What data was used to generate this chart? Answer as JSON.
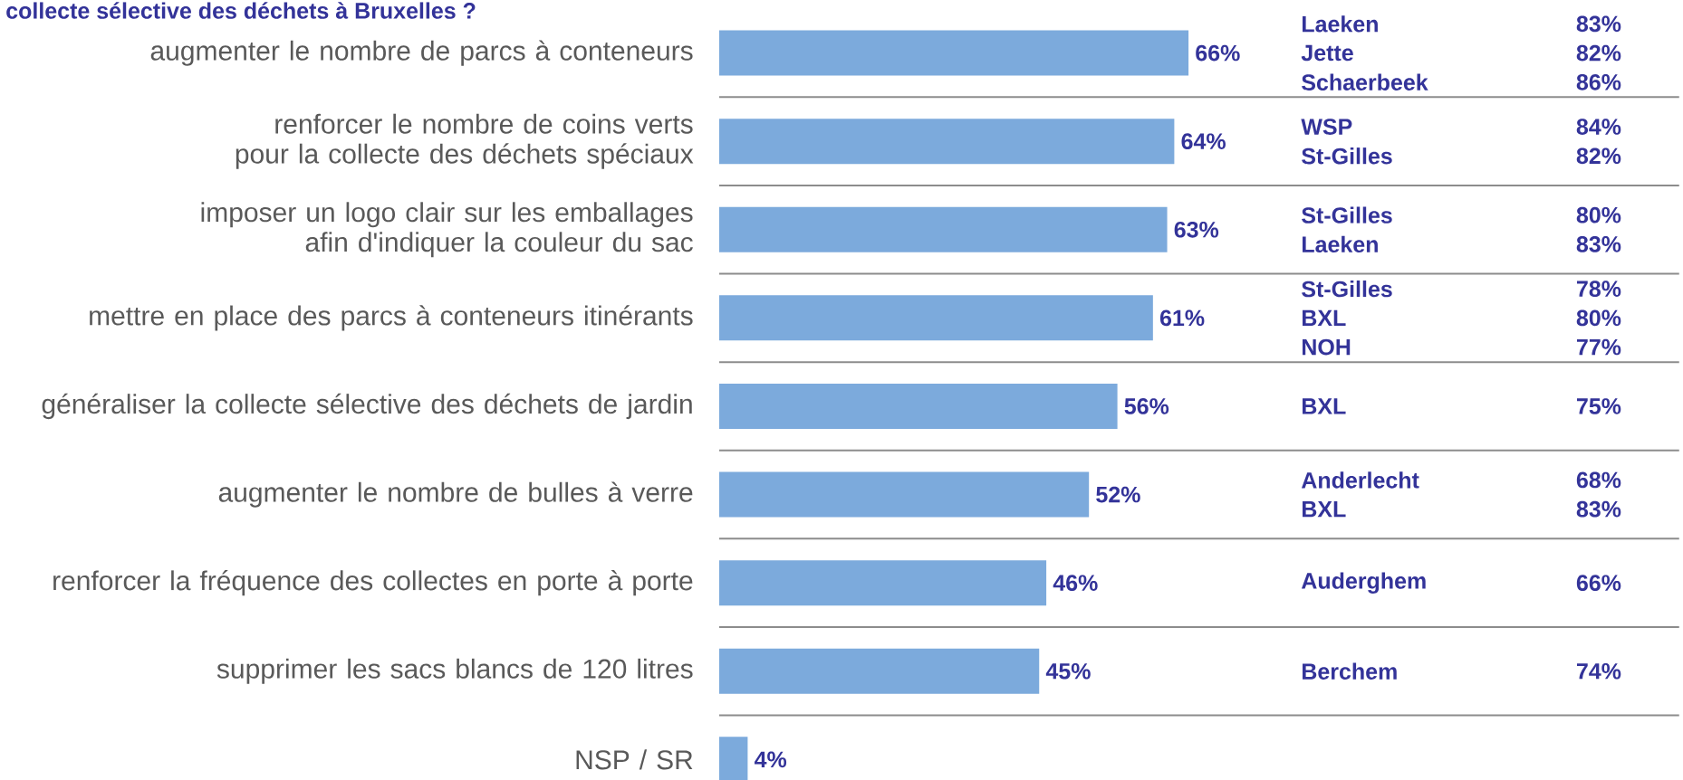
{
  "chart_data": {
    "type": "bar",
    "orientation": "horizontal",
    "title": "collecte sélective des déchets à Bruxelles ?",
    "categories": [
      "augmenter le nombre de parcs à conteneurs",
      "renforcer le nombre de coins verts pour la collecte des déchets spéciaux",
      "imposer un logo clair sur les emballages afin d'indiquer la couleur du sac",
      "mettre en place des parcs à conteneurs itinérants",
      "généraliser la collecte sélective des déchets de jardin",
      "augmenter le nombre de bulles à verre",
      "renforcer la fréquence des collectes en porte à porte",
      "supprimer les sacs blancs de 120 litres",
      "NSP / SR"
    ],
    "values": [
      66,
      64,
      63,
      61,
      56,
      52,
      46,
      45,
      4
    ],
    "value_labels": [
      "66%",
      "64%",
      "63%",
      "61%",
      "56%",
      "52%",
      "46%",
      "45%",
      "4%"
    ],
    "color": "#7caadc",
    "xlim": [
      0,
      135
    ],
    "annotations": [
      "Laeken",
      "83%",
      "Jette",
      "82%",
      "Schaerbeek",
      "86%",
      "WSP",
      "84%",
      "St-Gilles",
      "82%",
      "St-Gilles",
      "80%",
      "Laeken",
      "83%",
      "St-Gilles",
      "78%",
      "BXL",
      "80%",
      "NOH",
      "77%",
      "BXL",
      "75%",
      "Anderlecht",
      "68%",
      "BXL",
      "83%",
      "Auderghem",
      "66%",
      "Berchem",
      "74%"
    ]
  }
}
